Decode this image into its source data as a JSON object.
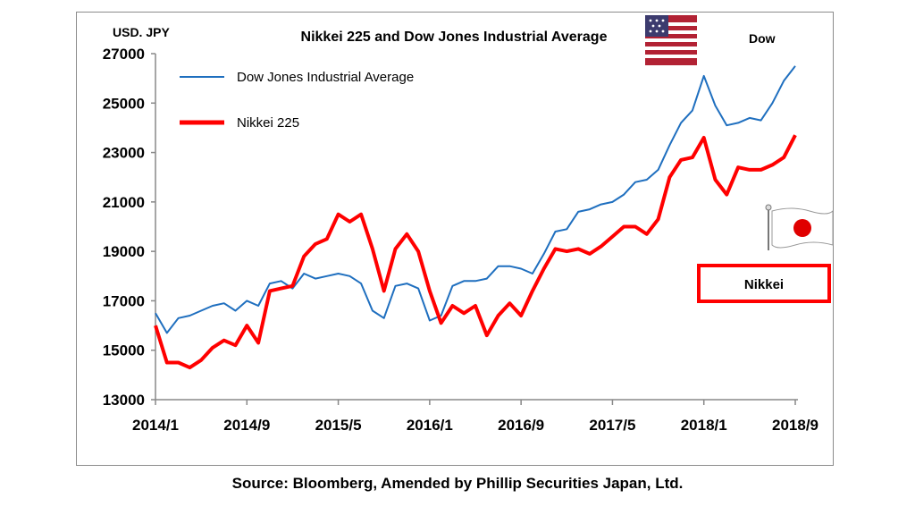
{
  "source": "Source: Bloomberg, Amended by Phillip Securities Japan, Ltd.",
  "chart_data": {
    "type": "line",
    "title": "Nikkei 225 and Dow Jones Industrial Average",
    "ylabel": "USD. JPY",
    "ylim": [
      13000,
      27000
    ],
    "yticks": [
      "27000",
      "25000",
      "23000",
      "21000",
      "19000",
      "17000",
      "15000",
      "13000"
    ],
    "xticks": [
      "2014/1",
      "2014/9",
      "2015/5",
      "2016/1",
      "2016/9",
      "2017/5",
      "2018/1",
      "2018/9"
    ],
    "grid": false,
    "legend_placement": "top-left",
    "annotations": {
      "dow": "Dow",
      "nikkei": "Nikkei"
    },
    "icons": {
      "dow": "usa-flag-icon",
      "nikkei": "japan-flag-icon"
    },
    "colors": {
      "dow": "#1f6fbf",
      "nikkei": "#ff0000"
    },
    "x": [
      "2014/1",
      "2014/2",
      "2014/3",
      "2014/4",
      "2014/5",
      "2014/6",
      "2014/7",
      "2014/8",
      "2014/9",
      "2014/10",
      "2014/11",
      "2014/12",
      "2015/1",
      "2015/2",
      "2015/3",
      "2015/4",
      "2015/5",
      "2015/6",
      "2015/7",
      "2015/8",
      "2015/9",
      "2015/10",
      "2015/11",
      "2015/12",
      "2016/1",
      "2016/2",
      "2016/3",
      "2016/4",
      "2016/5",
      "2016/6",
      "2016/7",
      "2016/8",
      "2016/9",
      "2016/10",
      "2016/11",
      "2016/12",
      "2017/1",
      "2017/2",
      "2017/3",
      "2017/4",
      "2017/5",
      "2017/6",
      "2017/7",
      "2017/8",
      "2017/9",
      "2017/10",
      "2017/11",
      "2017/12",
      "2018/1",
      "2018/2",
      "2018/3",
      "2018/4",
      "2018/5",
      "2018/6",
      "2018/7",
      "2018/8",
      "2018/9"
    ],
    "series": [
      {
        "name": "Dow Jones Industrial Average",
        "values": [
          16500,
          15700,
          16300,
          16400,
          16600,
          16800,
          16900,
          16600,
          17000,
          16800,
          17700,
          17800,
          17500,
          18100,
          17900,
          18000,
          18100,
          18000,
          17700,
          16600,
          16300,
          17600,
          17700,
          17500,
          16200,
          16400,
          17600,
          17800,
          17800,
          17900,
          18400,
          18400,
          18300,
          18100,
          18900,
          19800,
          19900,
          20600,
          20700,
          20900,
          21000,
          21300,
          21800,
          21900,
          22300,
          23300,
          24200,
          24700,
          26100,
          24900,
          24100,
          24200,
          24400,
          24300,
          25000,
          25900,
          26500
        ]
      },
      {
        "name": "Nikkei 225",
        "values": [
          16000,
          14500,
          14500,
          14300,
          14600,
          15100,
          15400,
          15200,
          16000,
          15300,
          17400,
          17500,
          17600,
          18800,
          19300,
          19500,
          20500,
          20200,
          20500,
          19100,
          17400,
          19100,
          19700,
          19000,
          17400,
          16100,
          16800,
          16500,
          16800,
          15600,
          16400,
          16900,
          16400,
          17400,
          18300,
          19100,
          19000,
          19100,
          18900,
          19200,
          19600,
          20000,
          20000,
          19700,
          20300,
          22000,
          22700,
          22800,
          23600,
          21900,
          21300,
          22400,
          22300,
          22300,
          22500,
          22800,
          23700
        ]
      }
    ]
  }
}
